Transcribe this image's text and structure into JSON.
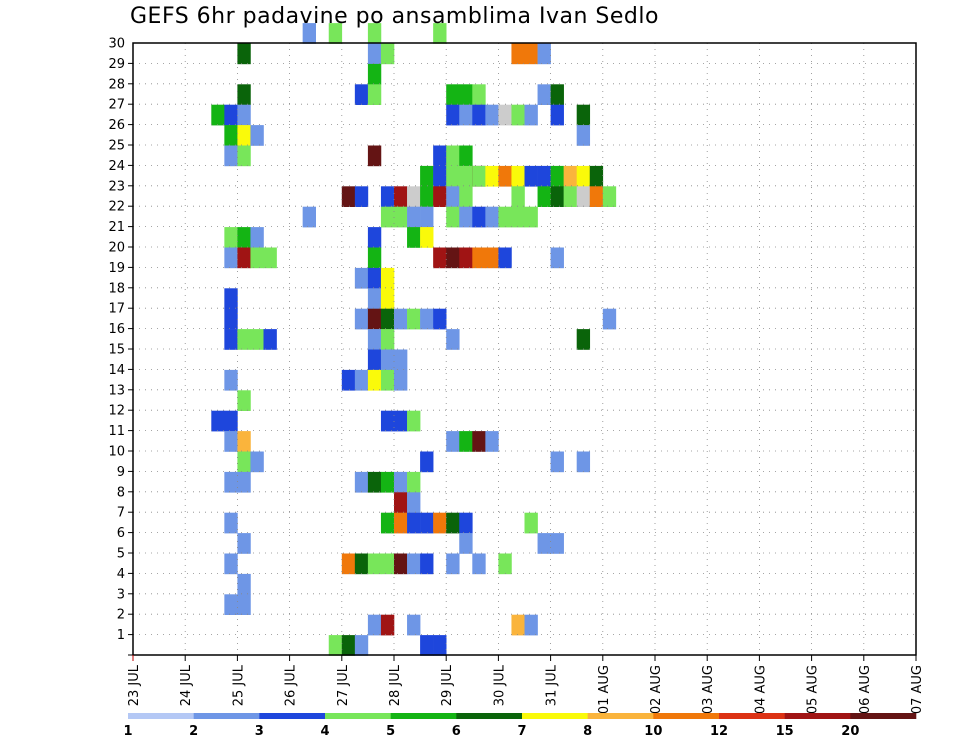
{
  "chart_data": {
    "type": "heatmap",
    "title": "GEFS 6hr padavine po ansamblima Ivan Sedlo",
    "xlabel": "",
    "ylabel": "",
    "x_tick_labels": [
      "23 JUL",
      "24 JUL",
      "25 JUL",
      "26 JUL",
      "27 JUL",
      "28 JUL",
      "29 JUL",
      "30 JUL",
      "31 JUL",
      "01 AUG",
      "02 AUG",
      "03 AUG",
      "04 AUG",
      "05 AUG",
      "06 AUG",
      "07 AUG"
    ],
    "y_tick_labels": [
      "1",
      "2",
      "3",
      "4",
      "5",
      "6",
      "7",
      "8",
      "9",
      "10",
      "11",
      "12",
      "13",
      "14",
      "15",
      "16",
      "17",
      "18",
      "19",
      "20",
      "21",
      "22",
      "23",
      "24",
      "25",
      "26",
      "27",
      "28",
      "29",
      "30"
    ],
    "ylim": [
      0,
      30
    ],
    "x_steps_per_day": 4,
    "grid": true,
    "legend": {
      "placement": "bottom",
      "bins": [
        {
          "label": "1",
          "color": "#b4c8f5"
        },
        {
          "label": "2",
          "color": "#6e96e6"
        },
        {
          "label": "3",
          "color": "#1e46dc"
        },
        {
          "label": "4",
          "color": "#78e65a"
        },
        {
          "label": "5",
          "color": "#14b414"
        },
        {
          "label": "6",
          "color": "#0a640a"
        },
        {
          "label": "7",
          "color": "#fafa0a"
        },
        {
          "label": "8",
          "color": "#fab43c"
        },
        {
          "label": "10",
          "color": "#f0780a"
        },
        {
          "label": "12",
          "color": "#dc3214"
        },
        {
          "label": "15",
          "color": "#a01414"
        },
        {
          "label": "20",
          "color": "#641414"
        }
      ]
    },
    "cells": [
      [
        13,
        30,
        1
      ],
      [
        15,
        30,
        3
      ],
      [
        18,
        30,
        3
      ],
      [
        23,
        30,
        3
      ],
      [
        15,
        0,
        3
      ],
      [
        16,
        0,
        5
      ],
      [
        17,
        0,
        1
      ],
      [
        22,
        0,
        2
      ],
      [
        23,
        0,
        2
      ],
      [
        29,
        29,
        8
      ],
      [
        30,
        29,
        8
      ],
      [
        31,
        29,
        1
      ],
      [
        18,
        29,
        1
      ],
      [
        19,
        29,
        3
      ],
      [
        8,
        29,
        5
      ],
      [
        18,
        28,
        4
      ],
      [
        8,
        27,
        5
      ],
      [
        17,
        27,
        2
      ],
      [
        18,
        27,
        3
      ],
      [
        24,
        27,
        4
      ],
      [
        25,
        27,
        4
      ],
      [
        26,
        27,
        3
      ],
      [
        31,
        27,
        1
      ],
      [
        32,
        27,
        5
      ],
      [
        6,
        26,
        4
      ],
      [
        7,
        26,
        2
      ],
      [
        8,
        26,
        1
      ],
      [
        24,
        26,
        2
      ],
      [
        25,
        26,
        1
      ],
      [
        26,
        26,
        2
      ],
      [
        27,
        26,
        1
      ],
      [
        28,
        26,
        12
      ],
      [
        29,
        26,
        3
      ],
      [
        30,
        26,
        1
      ],
      [
        32,
        26,
        2
      ],
      [
        34,
        26,
        5
      ],
      [
        7,
        25,
        4
      ],
      [
        8,
        25,
        6
      ],
      [
        9,
        25,
        1
      ],
      [
        34,
        25,
        1
      ],
      [
        7,
        24,
        1
      ],
      [
        8,
        24,
        3
      ],
      [
        18,
        24,
        11
      ],
      [
        23,
        24,
        2
      ],
      [
        24,
        24,
        3
      ],
      [
        25,
        24,
        4
      ],
      [
        22,
        23,
        4
      ],
      [
        23,
        23,
        2
      ],
      [
        24,
        23,
        3
      ],
      [
        25,
        23,
        3
      ],
      [
        26,
        23,
        11
      ],
      [
        26,
        23,
        3
      ],
      [
        27,
        23,
        6
      ],
      [
        28,
        23,
        8
      ],
      [
        29,
        23,
        6
      ],
      [
        30,
        23,
        2
      ],
      [
        31,
        23,
        2
      ],
      [
        32,
        23,
        4
      ],
      [
        33,
        23,
        7
      ],
      [
        34,
        23,
        6
      ],
      [
        35,
        23,
        5
      ],
      [
        16,
        22,
        11
      ],
      [
        17,
        22,
        2
      ],
      [
        19,
        22,
        2
      ],
      [
        20,
        22,
        10
      ],
      [
        21,
        22,
        12
      ],
      [
        22,
        22,
        4
      ],
      [
        23,
        22,
        10
      ],
      [
        24,
        22,
        1
      ],
      [
        25,
        22,
        3
      ],
      [
        29,
        22,
        3
      ],
      [
        31,
        22,
        4
      ],
      [
        32,
        22,
        5
      ],
      [
        33,
        22,
        3
      ],
      [
        34,
        22,
        12
      ],
      [
        35,
        22,
        8
      ],
      [
        36,
        22,
        3
      ],
      [
        13,
        21,
        1
      ],
      [
        19,
        21,
        3
      ],
      [
        20,
        21,
        3
      ],
      [
        21,
        21,
        1
      ],
      [
        22,
        21,
        1
      ],
      [
        24,
        21,
        3
      ],
      [
        25,
        21,
        1
      ],
      [
        26,
        21,
        2
      ],
      [
        27,
        21,
        1
      ],
      [
        28,
        21,
        3
      ],
      [
        29,
        21,
        3
      ],
      [
        30,
        21,
        3
      ],
      [
        7,
        20,
        3
      ],
      [
        8,
        20,
        4
      ],
      [
        9,
        20,
        1
      ],
      [
        18,
        20,
        2
      ],
      [
        21,
        20,
        4
      ],
      [
        22,
        20,
        6
      ],
      [
        7,
        19,
        1
      ],
      [
        8,
        19,
        10
      ],
      [
        9,
        19,
        3
      ],
      [
        10,
        19,
        3
      ],
      [
        18,
        19,
        4
      ],
      [
        23,
        19,
        10
      ],
      [
        24,
        19,
        11
      ],
      [
        25,
        19,
        10
      ],
      [
        26,
        19,
        8
      ],
      [
        27,
        19,
        8
      ],
      [
        28,
        19,
        2
      ],
      [
        32,
        19,
        1
      ],
      [
        17,
        18,
        1
      ],
      [
        18,
        18,
        2
      ],
      [
        19,
        18,
        6
      ],
      [
        7,
        17,
        2
      ],
      [
        18,
        17,
        1
      ],
      [
        19,
        17,
        6
      ],
      [
        7,
        16,
        2
      ],
      [
        17,
        16,
        1
      ],
      [
        18,
        16,
        11
      ],
      [
        19,
        16,
        5
      ],
      [
        20,
        16,
        1
      ],
      [
        21,
        16,
        3
      ],
      [
        22,
        16,
        1
      ],
      [
        23,
        16,
        2
      ],
      [
        36,
        16,
        1
      ],
      [
        7,
        15,
        2
      ],
      [
        8,
        15,
        3
      ],
      [
        9,
        15,
        3
      ],
      [
        10,
        15,
        2
      ],
      [
        18,
        15,
        1
      ],
      [
        19,
        15,
        3
      ],
      [
        24,
        15,
        1
      ],
      [
        34,
        15,
        5
      ],
      [
        18,
        14,
        2
      ],
      [
        19,
        14,
        1
      ],
      [
        20,
        14,
        1
      ],
      [
        7,
        13,
        1
      ],
      [
        16,
        13,
        2
      ],
      [
        17,
        13,
        1
      ],
      [
        18,
        13,
        6
      ],
      [
        19,
        13,
        3
      ],
      [
        20,
        13,
        1
      ],
      [
        8,
        12,
        3
      ],
      [
        6,
        11,
        2
      ],
      [
        7,
        11,
        2
      ],
      [
        19,
        11,
        2
      ],
      [
        20,
        11,
        2
      ],
      [
        21,
        11,
        3
      ],
      [
        7,
        10,
        1
      ],
      [
        8,
        10,
        7
      ],
      [
        24,
        10,
        1
      ],
      [
        25,
        10,
        4
      ],
      [
        26,
        10,
        11
      ],
      [
        27,
        10,
        1
      ],
      [
        8,
        9,
        3
      ],
      [
        9,
        9,
        1
      ],
      [
        22,
        9,
        2
      ],
      [
        32,
        9,
        1
      ],
      [
        34,
        9,
        1
      ],
      [
        7,
        8,
        1
      ],
      [
        8,
        8,
        1
      ],
      [
        17,
        8,
        1
      ],
      [
        18,
        8,
        5
      ],
      [
        19,
        8,
        4
      ],
      [
        20,
        8,
        1
      ],
      [
        21,
        8,
        3
      ],
      [
        20,
        7,
        10
      ],
      [
        21,
        7,
        1
      ],
      [
        7,
        6,
        1
      ],
      [
        19,
        6,
        4
      ],
      [
        20,
        6,
        8
      ],
      [
        21,
        6,
        2
      ],
      [
        22,
        6,
        2
      ],
      [
        23,
        6,
        8
      ],
      [
        24,
        6,
        5
      ],
      [
        25,
        6,
        2
      ],
      [
        30,
        6,
        3
      ],
      [
        8,
        5,
        1
      ],
      [
        25,
        5,
        1
      ],
      [
        31,
        5,
        1
      ],
      [
        32,
        5,
        1
      ],
      [
        7,
        4,
        1
      ],
      [
        16,
        4,
        8
      ],
      [
        17,
        4,
        5
      ],
      [
        18,
        4,
        3
      ],
      [
        19,
        4,
        3
      ],
      [
        20,
        4,
        11
      ],
      [
        21,
        4,
        1
      ],
      [
        22,
        4,
        2
      ],
      [
        24,
        4,
        1
      ],
      [
        26,
        4,
        1
      ],
      [
        28,
        4,
        3
      ],
      [
        8,
        3,
        1
      ],
      [
        7,
        2,
        1
      ],
      [
        8,
        2,
        1
      ],
      [
        18,
        1,
        1
      ],
      [
        19,
        1,
        10
      ],
      [
        21,
        1,
        1
      ],
      [
        29,
        1,
        7
      ],
      [
        30,
        1,
        1
      ]
    ]
  }
}
